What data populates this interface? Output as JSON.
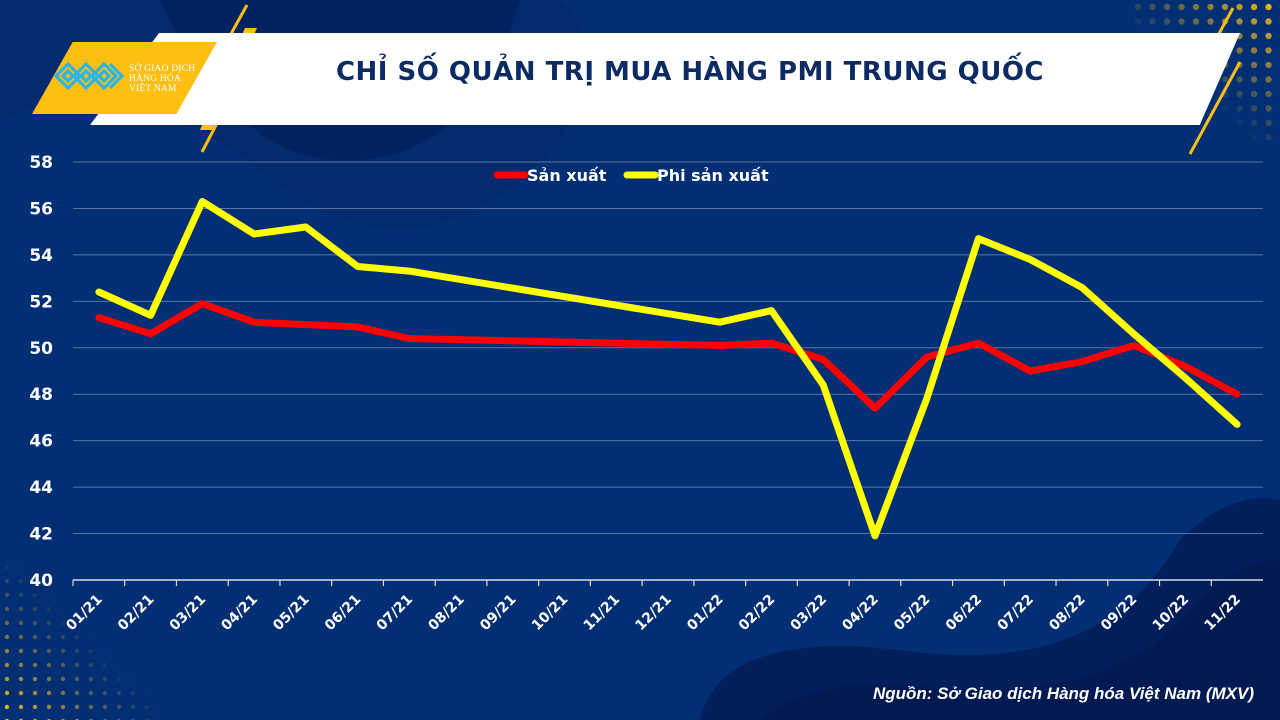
{
  "header": {
    "title": "CHỈ SỐ QUẢN TRỊ MUA HÀNG PMI TRUNG QUỐC",
    "logo_lines": [
      "SỞ GIAO DỊCH",
      "HÀNG HÓA",
      "VIỆT NAM"
    ]
  },
  "footer": {
    "source": "Nguồn: Sở Giao dịch Hàng hóa Việt Nam (MXV)"
  },
  "colors": {
    "background": "#022e74",
    "accent_gold": "#fcbf12",
    "series_manufacturing": "#ff0000",
    "series_non_manufacturing": "#ffff00",
    "gridline": "#5a74a8",
    "text": "#ffffff",
    "title": "#0c2a63"
  },
  "chart_data": {
    "type": "line",
    "title": "CHỈ SỐ QUẢN TRỊ MUA HÀNG PMI TRUNG QUỐC",
    "xlabel": "",
    "ylabel": "",
    "ylim": [
      40,
      58
    ],
    "yticks": [
      40,
      42,
      44,
      46,
      48,
      50,
      52,
      54,
      56,
      58
    ],
    "grid": true,
    "legend_position": "top-center",
    "categories": [
      "01/21",
      "02/21",
      "03/21",
      "04/21",
      "05/21",
      "06/21",
      "07/21",
      "08/21",
      "09/21",
      "10/21",
      "11/21",
      "12/21",
      "01/22",
      "02/22",
      "03/22",
      "04/22",
      "05/22",
      "06/22",
      "07/22",
      "08/22",
      "09/22",
      "10/22",
      "11/22"
    ],
    "series": [
      {
        "name": "Sản xuất",
        "color": "#ff0000",
        "values": [
          51.3,
          50.6,
          51.9,
          51.1,
          51.0,
          50.9,
          50.4,
          null,
          null,
          null,
          null,
          null,
          50.1,
          50.2,
          49.5,
          47.4,
          49.6,
          50.2,
          49.0,
          49.4,
          50.1,
          49.2,
          48.0
        ]
      },
      {
        "name": "Phi sản xuất",
        "color": "#ffff00",
        "values": [
          52.4,
          51.4,
          56.3,
          54.9,
          55.2,
          53.5,
          53.3,
          null,
          null,
          null,
          null,
          null,
          51.1,
          51.6,
          48.4,
          41.9,
          47.8,
          54.7,
          53.8,
          52.6,
          50.6,
          48.7,
          46.7
        ]
      }
    ]
  }
}
